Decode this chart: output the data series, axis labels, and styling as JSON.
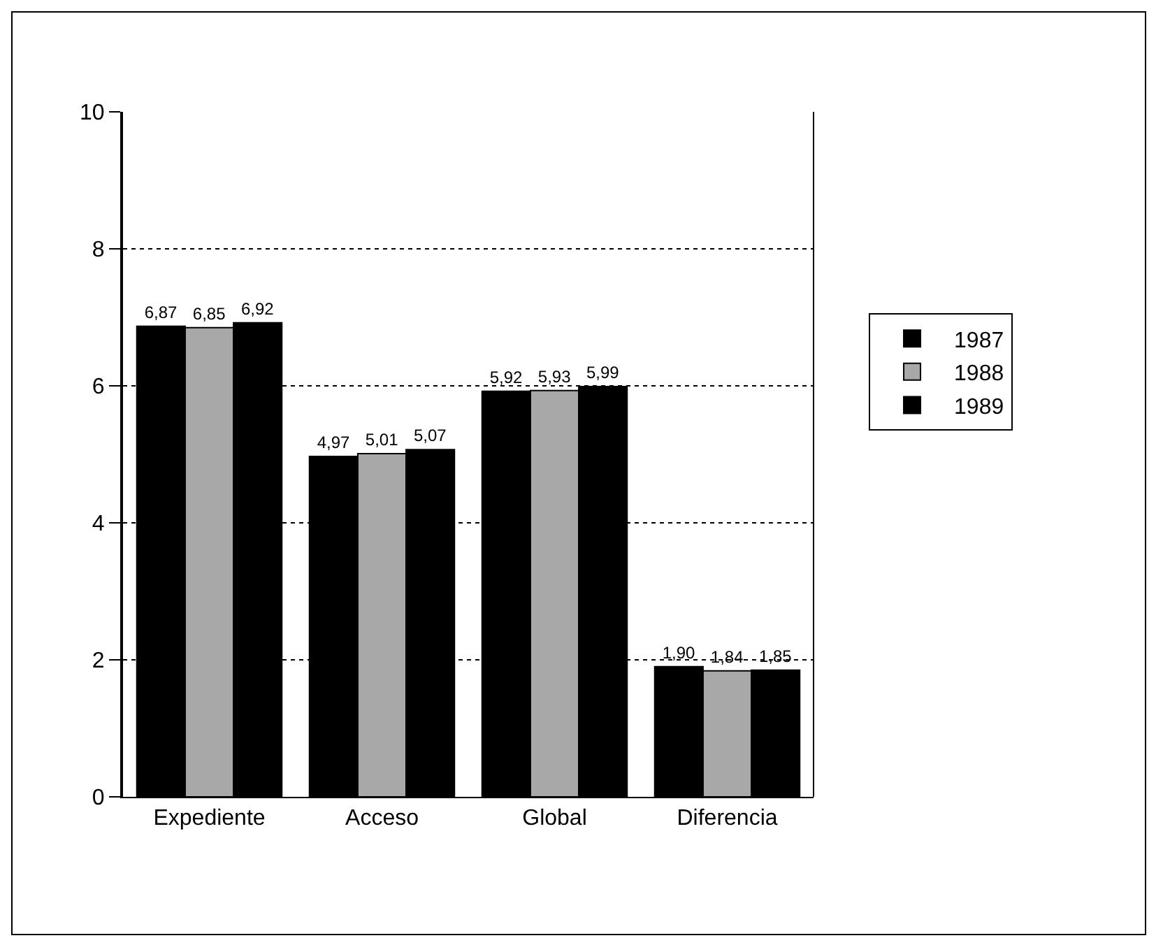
{
  "chart_data": {
    "type": "bar",
    "categories": [
      "Expediente",
      "Acceso",
      "Global",
      "Diferencia"
    ],
    "series": [
      {
        "name": "1987",
        "color": "#000000",
        "values": [
          6.87,
          4.97,
          5.92,
          1.9
        ],
        "value_labels": [
          "6,87",
          "4,97",
          "5,92",
          "1,90"
        ]
      },
      {
        "name": "1988",
        "color": "#a8a8a8",
        "values": [
          6.85,
          5.01,
          5.93,
          1.84
        ],
        "value_labels": [
          "6,85",
          "5,01",
          "5,93",
          "1,84"
        ]
      },
      {
        "name": "1989",
        "color": "#000000",
        "values": [
          6.92,
          5.07,
          5.99,
          1.85
        ],
        "value_labels": [
          "6,92",
          "5,07",
          "5,99",
          "1,85"
        ]
      }
    ],
    "ylim": [
      0,
      10
    ],
    "yticks": [
      0,
      2,
      4,
      6,
      8,
      10
    ],
    "grid": "y",
    "line_style": "dotted",
    "legend": "right"
  }
}
